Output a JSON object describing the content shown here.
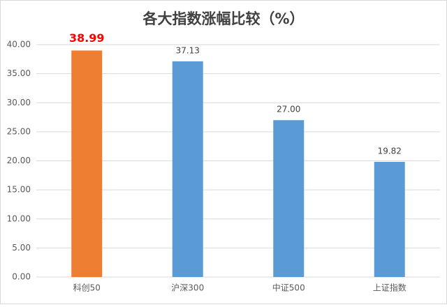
{
  "chart_data": {
    "type": "bar",
    "title": "各大指数涨幅比较（%）",
    "categories": [
      "科创50",
      "沪深300",
      "中证500",
      "上证指数"
    ],
    "values": [
      38.99,
      37.13,
      27.0,
      19.82
    ],
    "value_labels": [
      "38.99",
      "37.13",
      "27.00",
      "19.82"
    ],
    "colors": [
      "#ed7d31",
      "#5b9bd5",
      "#5b9bd5",
      "#5b9bd5"
    ],
    "value_label_colors": [
      "#ff0000",
      "#404040",
      "#404040",
      "#404040"
    ],
    "ylim": [
      0,
      40
    ],
    "yticks": [
      {
        "value": 0,
        "label": "0.00"
      },
      {
        "value": 5,
        "label": "5.00"
      },
      {
        "value": 10,
        "label": "10.00"
      },
      {
        "value": 15,
        "label": "15.00"
      },
      {
        "value": 20,
        "label": "20.00"
      },
      {
        "value": 25,
        "label": "25.00"
      },
      {
        "value": 30,
        "label": "30.00"
      },
      {
        "value": 35,
        "label": "35.00"
      },
      {
        "value": 40,
        "label": "40.00"
      }
    ],
    "grid": true
  }
}
